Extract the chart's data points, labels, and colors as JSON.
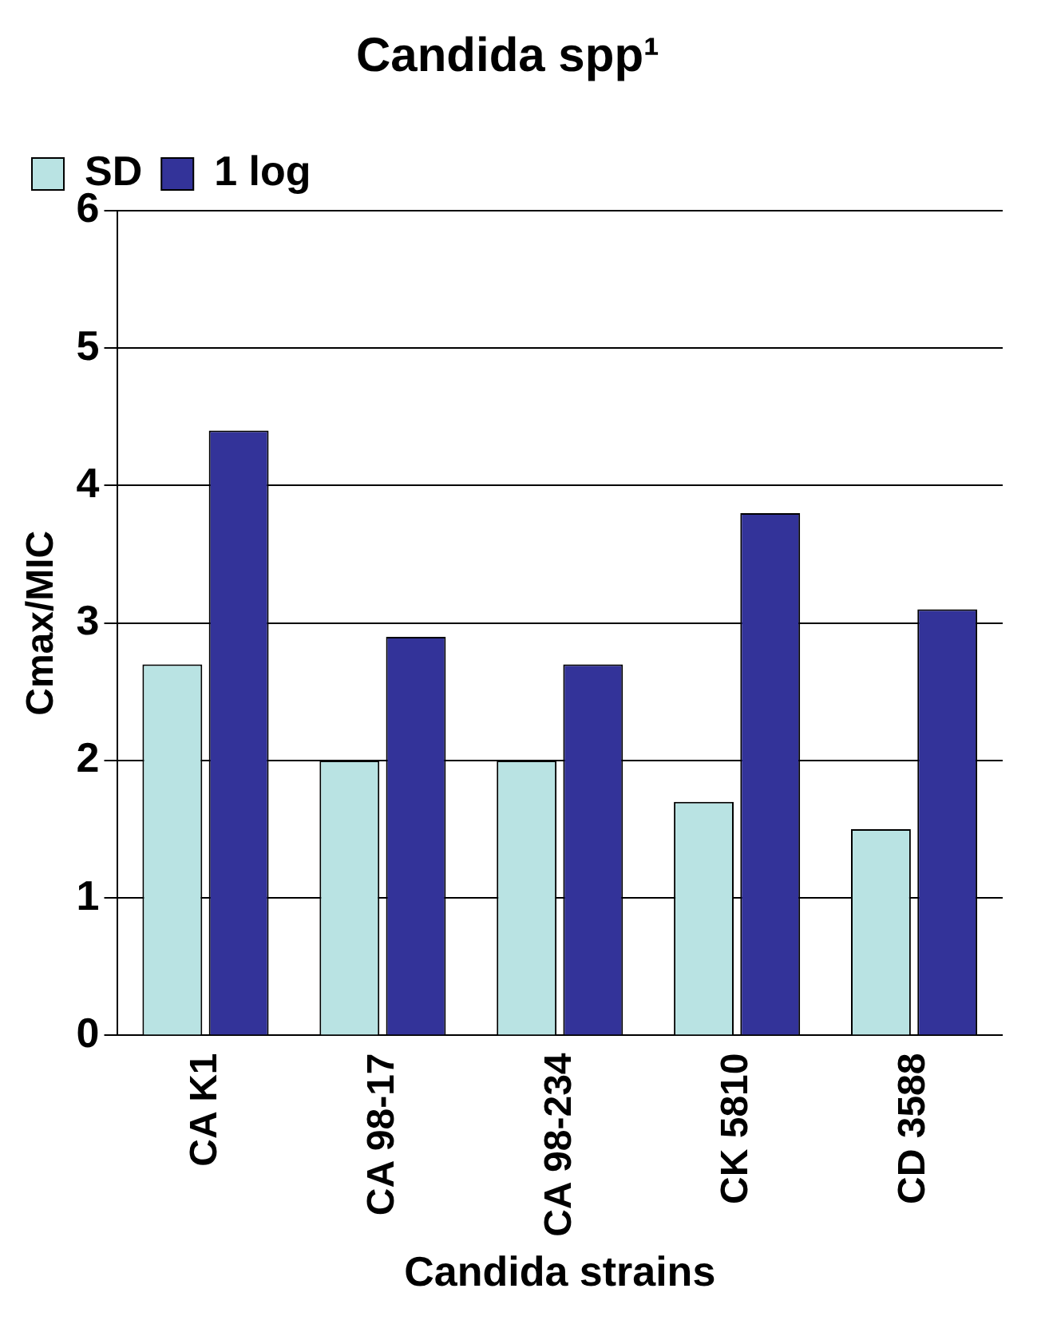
{
  "chart_data": {
    "type": "bar",
    "title": "Candida spp¹",
    "xlabel": "Candida strains",
    "ylabel": "Cmax/MIC",
    "categories": [
      "CA K1",
      "CA 98-17",
      "CA 98-234",
      "CK 5810",
      "CD 3588"
    ],
    "series": [
      {
        "name": "SD",
        "color": "#b9e3e3",
        "values": [
          2.7,
          2.0,
          2.0,
          1.7,
          1.5
        ]
      },
      {
        "name": "1 log",
        "color": "#333399",
        "values": [
          4.4,
          2.9,
          2.7,
          3.8,
          3.1
        ]
      }
    ],
    "ylim": [
      0,
      6
    ],
    "yticks": [
      0,
      1,
      2,
      3,
      4,
      5,
      6
    ],
    "grid": "y",
    "legend": "top left"
  }
}
